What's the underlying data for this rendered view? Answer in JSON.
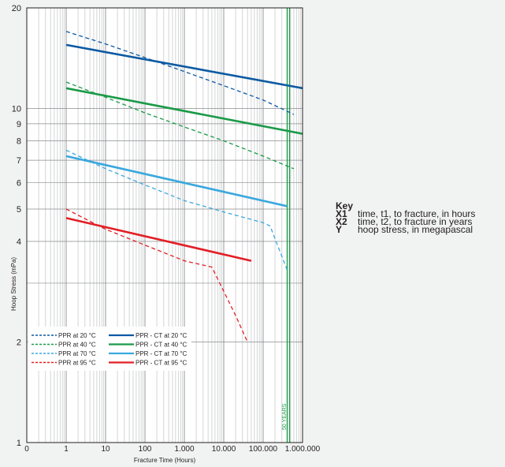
{
  "chart_data": {
    "type": "line",
    "xlabel": "Fracture Time (Hours)",
    "ylabel": "Hoop Stress (mPa)",
    "x_scale": "log",
    "y_scale": "log",
    "xlim": [
      0.1,
      1000000
    ],
    "ylim": [
      1,
      20
    ],
    "x_ticks": [
      {
        "value": 0.1,
        "label": "0"
      },
      {
        "value": 1,
        "label": "1"
      },
      {
        "value": 10,
        "label": "10"
      },
      {
        "value": 100,
        "label": "100"
      },
      {
        "value": 1000,
        "label": "1.000"
      },
      {
        "value": 10000,
        "label": "10.000"
      },
      {
        "value": 100000,
        "label": "100.000"
      },
      {
        "value": 1000000,
        "label": "1.000.000"
      }
    ],
    "y_ticks": [
      {
        "value": 1,
        "label": "1"
      },
      {
        "value": 2,
        "label": "2"
      },
      {
        "value": 4,
        "label": "4"
      },
      {
        "value": 5,
        "label": "5"
      },
      {
        "value": 6,
        "label": "6"
      },
      {
        "value": 7,
        "label": "7"
      },
      {
        "value": 8,
        "label": "8"
      },
      {
        "value": 9,
        "label": "9"
      },
      {
        "value": 10,
        "label": "10"
      },
      {
        "value": 20,
        "label": "20"
      }
    ],
    "grid": true,
    "legend_position": "bottom-left",
    "annotations": [
      {
        "text": "50 YEARS",
        "x": 438000
      }
    ],
    "series": [
      {
        "name": "PPR at 20 °C",
        "color": "#0b5aa2",
        "dashed": true,
        "points": [
          [
            1,
            17
          ],
          [
            10,
            15.6
          ],
          [
            100,
            14.2
          ],
          [
            1000,
            12.9
          ],
          [
            10000,
            11.7
          ],
          [
            100000,
            10.6
          ],
          [
            600000,
            9.6
          ]
        ]
      },
      {
        "name": "PPR at 40 °C",
        "color": "#1a9a48",
        "dashed": true,
        "points": [
          [
            1,
            12
          ],
          [
            10,
            10.8
          ],
          [
            100,
            9.7
          ],
          [
            1000,
            8.8
          ],
          [
            10000,
            8.0
          ],
          [
            100000,
            7.2
          ],
          [
            600000,
            6.6
          ]
        ]
      },
      {
        "name": "PPR at 70 °C",
        "color": "#3aa8de",
        "dashed": true,
        "points": [
          [
            1,
            7.5
          ],
          [
            10,
            6.6
          ],
          [
            100,
            5.9
          ],
          [
            1000,
            5.3
          ],
          [
            10000,
            4.9
          ],
          [
            100000,
            4.55
          ],
          [
            150000,
            4.45
          ],
          [
            400000,
            3.3
          ]
        ]
      },
      {
        "name": "PPR at 95 °C",
        "color": "#e21f26",
        "dashed": true,
        "points": [
          [
            1,
            5.0
          ],
          [
            10,
            4.35
          ],
          [
            100,
            3.9
          ],
          [
            1000,
            3.5
          ],
          [
            5000,
            3.35
          ],
          [
            20000,
            2.4
          ],
          [
            40000,
            2.0
          ]
        ]
      },
      {
        "name": "PPR - CT at 20 °C",
        "color": "#0b5aa2",
        "dashed": false,
        "points": [
          [
            1,
            15.5
          ],
          [
            1000000,
            11.5
          ]
        ]
      },
      {
        "name": "PPR - CT at 40 °C",
        "color": "#1a9a48",
        "dashed": false,
        "points": [
          [
            1,
            11.5
          ],
          [
            1000000,
            8.4
          ]
        ]
      },
      {
        "name": "PPR - CT at 70 °C",
        "color": "#3aa8de",
        "dashed": false,
        "points": [
          [
            1,
            7.2
          ],
          [
            400000,
            5.1
          ]
        ]
      },
      {
        "name": "PPR - CT at 95 °C",
        "color": "#e21f26",
        "dashed": false,
        "points": [
          [
            1,
            4.7
          ],
          [
            50000,
            3.5
          ]
        ]
      }
    ]
  },
  "key": {
    "title": "Key",
    "items": [
      {
        "code": "X1",
        "text": "time, t1, to fracture, in hours"
      },
      {
        "code": "X2",
        "text": "time, t2, to fracture in years"
      },
      {
        "code": "Y",
        "text": "hoop stress, in megapascal"
      }
    ]
  }
}
